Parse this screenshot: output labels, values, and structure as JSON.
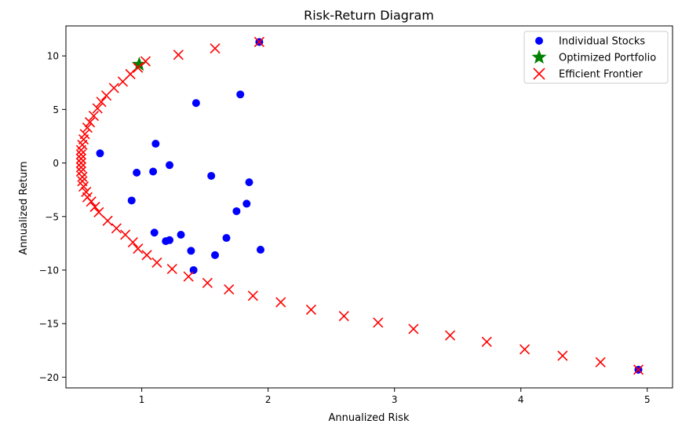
{
  "chart_data": {
    "type": "scatter",
    "title": "Risk-Return Diagram",
    "xlabel": "Annualized Risk",
    "ylabel": "Annualized Return",
    "xlim": [
      0.4,
      5.2
    ],
    "ylim": [
      -21,
      12.8
    ],
    "xticks": [
      1,
      2,
      3,
      4,
      5
    ],
    "yticks": [
      -20,
      -15,
      -10,
      -5,
      0,
      5,
      10
    ],
    "grid": false,
    "legend_position": "top-right",
    "series": [
      {
        "name": "Individual Stocks",
        "marker": "circle",
        "color": "#0000ff",
        "points": [
          [
            0.67,
            0.9
          ],
          [
            0.96,
            -0.9
          ],
          [
            1.09,
            -0.8
          ],
          [
            1.11,
            1.8
          ],
          [
            1.22,
            -0.2
          ],
          [
            0.92,
            -3.5
          ],
          [
            1.1,
            -6.5
          ],
          [
            1.19,
            -7.3
          ],
          [
            1.22,
            -7.2
          ],
          [
            1.31,
            -6.7
          ],
          [
            1.39,
            -8.2
          ],
          [
            1.41,
            -10.0
          ],
          [
            1.43,
            5.6
          ],
          [
            1.55,
            -1.2
          ],
          [
            1.58,
            -8.6
          ],
          [
            1.67,
            -7.0
          ],
          [
            1.75,
            -4.5
          ],
          [
            1.78,
            6.4
          ],
          [
            1.83,
            -3.8
          ],
          [
            1.85,
            -1.8
          ],
          [
            1.94,
            -8.1
          ],
          [
            1.93,
            11.3
          ],
          [
            4.93,
            -19.3
          ]
        ]
      },
      {
        "name": "Optimized Portfolio",
        "marker": "star",
        "color": "#008000",
        "points": [
          [
            0.98,
            9.2
          ]
        ]
      },
      {
        "name": "Efficient Frontier",
        "marker": "x",
        "color": "#ff0000",
        "points": [
          [
            0.52,
            -0.4
          ],
          [
            0.52,
            0.0
          ],
          [
            0.52,
            0.4
          ],
          [
            0.52,
            0.8
          ],
          [
            0.52,
            1.2
          ],
          [
            0.52,
            -0.8
          ],
          [
            0.53,
            -1.3
          ],
          [
            0.53,
            1.7
          ],
          [
            0.53,
            -1.7
          ],
          [
            0.54,
            2.2
          ],
          [
            0.54,
            -2.2
          ],
          [
            0.55,
            2.7
          ],
          [
            0.56,
            -2.7
          ],
          [
            0.57,
            3.3
          ],
          [
            0.57,
            -3.2
          ],
          [
            0.59,
            3.8
          ],
          [
            0.6,
            -3.6
          ],
          [
            0.62,
            4.4
          ],
          [
            0.63,
            -4.1
          ],
          [
            0.65,
            5.1
          ],
          [
            0.66,
            -4.6
          ],
          [
            0.68,
            5.7
          ],
          [
            0.72,
            6.3
          ],
          [
            0.73,
            -5.4
          ],
          [
            0.78,
            7.0
          ],
          [
            0.8,
            -6.1
          ],
          [
            0.85,
            7.6
          ],
          [
            0.87,
            -6.7
          ],
          [
            0.91,
            8.3
          ],
          [
            0.93,
            -7.4
          ],
          [
            0.97,
            8.9
          ],
          [
            0.97,
            -8.0
          ],
          [
            1.03,
            9.5
          ],
          [
            1.04,
            -8.6
          ],
          [
            1.12,
            -9.3
          ],
          [
            1.24,
            -9.9
          ],
          [
            1.37,
            -10.6
          ],
          [
            1.52,
            -11.2
          ],
          [
            1.69,
            -11.8
          ],
          [
            1.88,
            -12.4
          ],
          [
            1.29,
            10.1
          ],
          [
            1.58,
            10.7
          ],
          [
            1.93,
            11.3
          ],
          [
            2.1,
            -13.0
          ],
          [
            2.34,
            -13.7
          ],
          [
            2.6,
            -14.3
          ],
          [
            2.87,
            -14.9
          ],
          [
            3.15,
            -15.5
          ],
          [
            3.44,
            -16.1
          ],
          [
            3.73,
            -16.7
          ],
          [
            4.03,
            -17.4
          ],
          [
            4.33,
            -18.0
          ],
          [
            4.63,
            -18.6
          ],
          [
            4.93,
            -19.3
          ]
        ]
      }
    ]
  }
}
